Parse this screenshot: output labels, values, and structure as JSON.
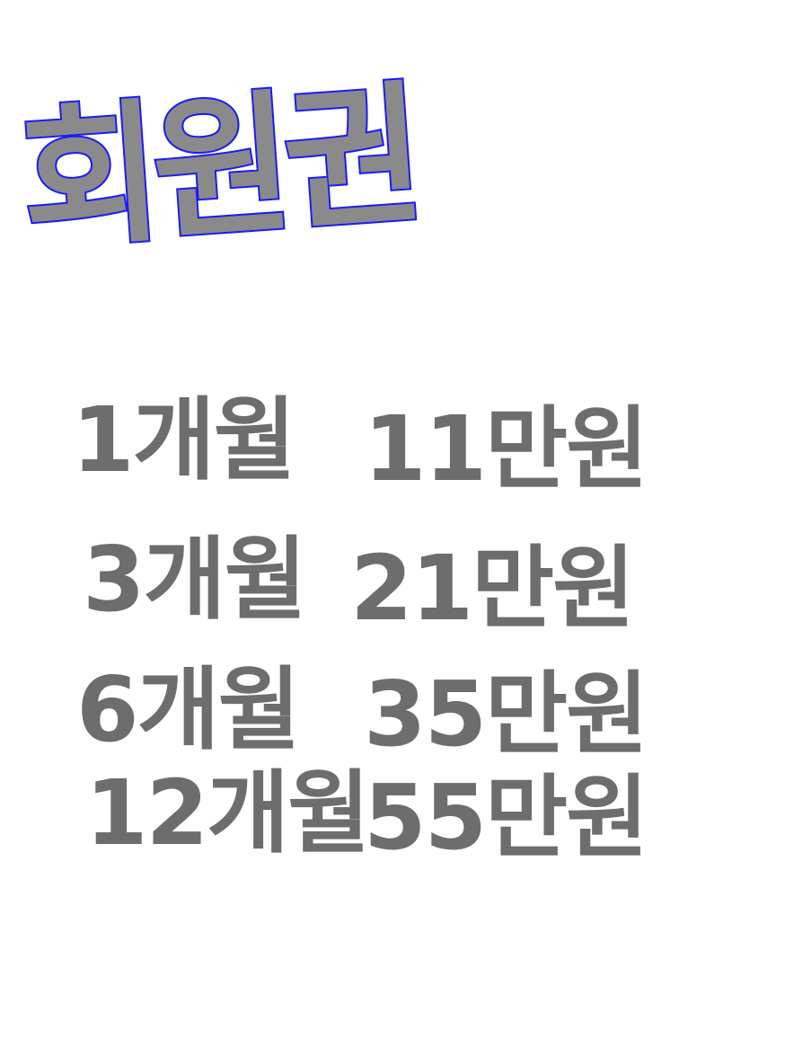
{
  "title": "회원권",
  "prices": [
    {
      "period": "1개월",
      "price": "11만원"
    },
    {
      "period": "3개월",
      "price": "21만원"
    },
    {
      "period": "6개월",
      "price": "35만원"
    },
    {
      "period": "12개월",
      "price": "55만원"
    }
  ],
  "colors": {
    "title_fill": "#8a8a8a",
    "title_outline": "#1a1aff",
    "text": "#6d6d6d",
    "background": "#ffffff"
  }
}
